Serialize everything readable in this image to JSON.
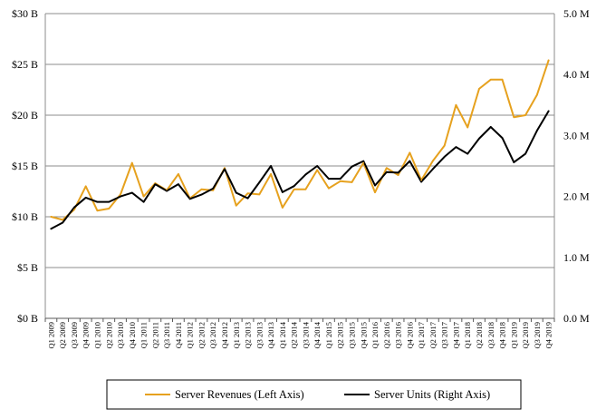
{
  "chart_data": {
    "type": "line",
    "title": "",
    "xlabel": "",
    "ylabel": "",
    "categories": [
      "Q1 2009",
      "Q2 2009",
      "Q3 2009",
      "Q4 2009",
      "Q1 2010",
      "Q2 2010",
      "Q3 2010",
      "Q4 2010",
      "Q1 2011",
      "Q2 2011",
      "Q3 2011",
      "Q4 2011",
      "Q1 2012",
      "Q2 2012",
      "Q3 2012",
      "Q4 2012",
      "Q1 2013",
      "Q2 2013",
      "Q3 2013",
      "Q4 2013",
      "Q1 2014",
      "Q2 2014",
      "Q3 2014",
      "Q4 2014",
      "Q1 2015",
      "Q2 2015",
      "Q3 2015",
      "Q4 2015",
      "Q1 2016",
      "Q2 2016",
      "Q3 2016",
      "Q4 2016",
      "Q1 2017",
      "Q2 2017",
      "Q3 2017",
      "Q4 2017",
      "Q1 2018",
      "Q2 2018",
      "Q3 2018",
      "Q4 2018",
      "Q1 2019",
      "Q2 2019",
      "Q3 2019",
      "Q4 2019"
    ],
    "left_axis": {
      "range": [
        0,
        30
      ],
      "ticks": [
        0,
        5,
        10,
        15,
        20,
        25,
        30
      ],
      "tick_labels": [
        "$0 B",
        "$5 B",
        "$10 B",
        "$15 B",
        "$20 B",
        "$25 B",
        "$30 B"
      ]
    },
    "right_axis": {
      "range": [
        0,
        5
      ],
      "ticks": [
        0,
        1,
        2,
        3,
        4,
        5
      ],
      "tick_labels": [
        "0.0 M",
        "1.0 M",
        "2.0 M",
        "3.0 M",
        "4.0 M",
        "5.0 M"
      ]
    },
    "grid": true,
    "legend_position": "bottom",
    "series": [
      {
        "name": "Server Revenues (Left Axis)",
        "axis": "left",
        "color": "#E6A11E",
        "values": [
          10.0,
          9.7,
          10.7,
          13.0,
          10.6,
          10.8,
          12.2,
          15.3,
          12.0,
          13.3,
          12.6,
          14.2,
          11.8,
          12.7,
          12.6,
          14.8,
          11.1,
          12.3,
          12.2,
          14.2,
          10.9,
          12.7,
          12.7,
          14.6,
          12.8,
          13.5,
          13.4,
          15.3,
          12.4,
          14.8,
          14.1,
          16.3,
          13.6,
          15.5,
          17.0,
          21.0,
          18.8,
          22.6,
          23.5,
          23.5,
          19.8,
          20.0,
          22.0,
          25.4
        ]
      },
      {
        "name": "Server Units (Right Axis)",
        "axis": "right",
        "color": "#000000",
        "values": [
          1.47,
          1.57,
          1.82,
          1.98,
          1.91,
          1.91,
          2.0,
          2.06,
          1.91,
          2.2,
          2.09,
          2.2,
          1.96,
          2.03,
          2.13,
          2.45,
          2.06,
          1.97,
          2.23,
          2.5,
          2.07,
          2.17,
          2.36,
          2.5,
          2.29,
          2.29,
          2.49,
          2.58,
          2.18,
          2.4,
          2.39,
          2.58,
          2.24,
          2.45,
          2.65,
          2.81,
          2.7,
          2.95,
          3.14,
          2.96,
          2.56,
          2.7,
          3.08,
          3.4
        ]
      }
    ]
  }
}
